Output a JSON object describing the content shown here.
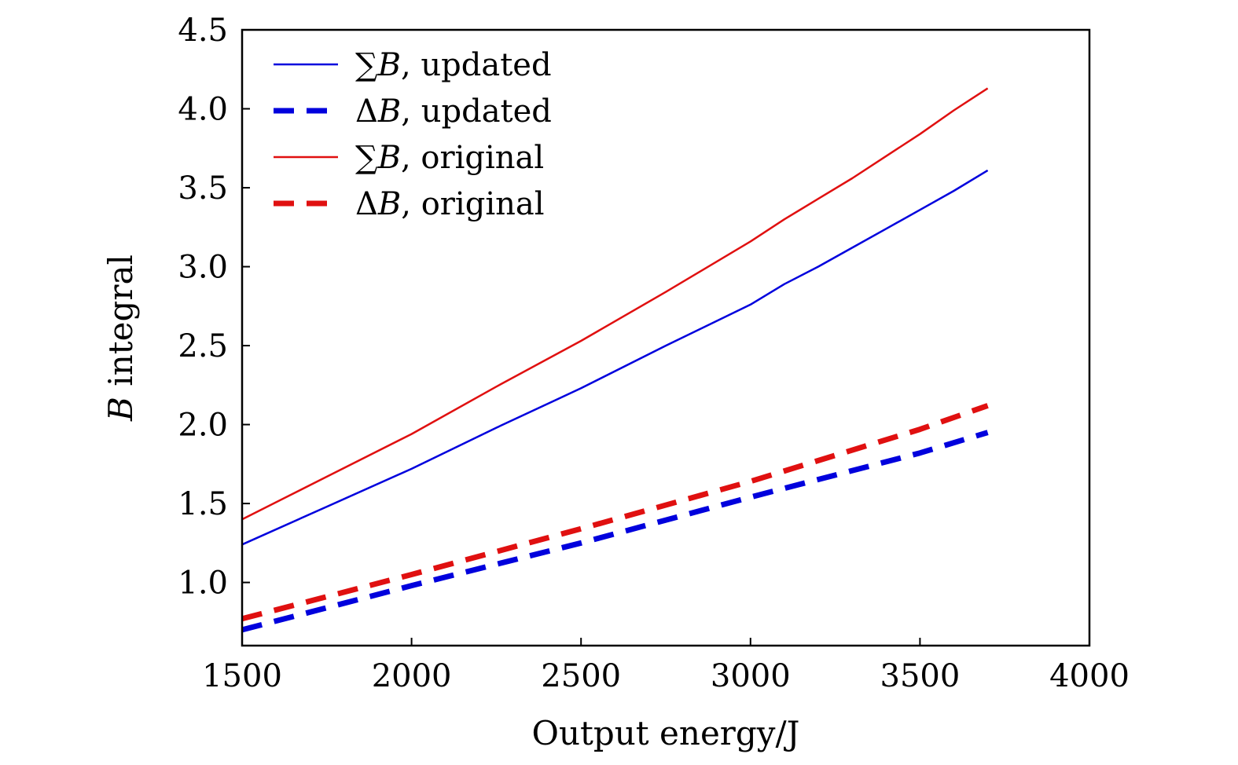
{
  "chart_data": {
    "type": "line",
    "title": "",
    "xlabel": "Output energy/J",
    "ylabel_italic": "B",
    "ylabel_rest": " integral",
    "xlim": [
      1500,
      4000
    ],
    "ylim": [
      0.6,
      4.5
    ],
    "xticks": [
      1500,
      2000,
      2500,
      3000,
      3500,
      4000
    ],
    "xtick_labels": [
      "1500",
      "2000",
      "2500",
      "3000",
      "3500",
      "4000"
    ],
    "yticks": [
      1.0,
      1.5,
      2.0,
      2.5,
      3.0,
      3.5,
      4.0,
      4.5
    ],
    "ytick_labels": [
      "1.0",
      "1.5",
      "2.0",
      "2.5",
      "3.0",
      "3.5",
      "4.0",
      "4.5"
    ],
    "grid": false,
    "legend_position": "top-left",
    "series": [
      {
        "name": "∑B, updated",
        "name_symbol": "∑",
        "name_var": "B",
        "name_suffix": ", updated",
        "color": "#0000dd",
        "style": "solid",
        "x": [
          1500,
          1750,
          2000,
          2250,
          2500,
          2750,
          3000,
          3100,
          3200,
          3300,
          3400,
          3500,
          3600,
          3700
        ],
        "y": [
          1.24,
          1.48,
          1.72,
          1.98,
          2.23,
          2.5,
          2.76,
          2.89,
          3.0,
          3.12,
          3.24,
          3.36,
          3.48,
          3.61
        ]
      },
      {
        "name": "ΔB, updated",
        "name_symbol": "Δ",
        "name_var": "B",
        "name_suffix": ", updated",
        "color": "#0000dd",
        "style": "dashed",
        "x": [
          1500,
          2000,
          2500,
          3000,
          3500,
          3700
        ],
        "y": [
          0.7,
          0.98,
          1.25,
          1.54,
          1.82,
          1.95
        ]
      },
      {
        "name": "∑B, original",
        "name_symbol": "∑",
        "name_var": "B",
        "name_suffix": ", original",
        "color": "#e01010",
        "style": "solid",
        "x": [
          1500,
          1750,
          2000,
          2250,
          2500,
          2750,
          3000,
          3100,
          3200,
          3300,
          3400,
          3500,
          3600,
          3700
        ],
        "y": [
          1.4,
          1.67,
          1.94,
          2.24,
          2.53,
          2.84,
          3.16,
          3.3,
          3.43,
          3.56,
          3.7,
          3.84,
          3.99,
          4.13
        ]
      },
      {
        "name": "ΔB, original",
        "name_symbol": "Δ",
        "name_var": "B",
        "name_suffix": ", original",
        "color": "#e01010",
        "style": "dashed",
        "x": [
          1500,
          2000,
          2500,
          3000,
          3500,
          3700
        ],
        "y": [
          0.77,
          1.05,
          1.34,
          1.64,
          1.97,
          2.12
        ]
      }
    ]
  }
}
